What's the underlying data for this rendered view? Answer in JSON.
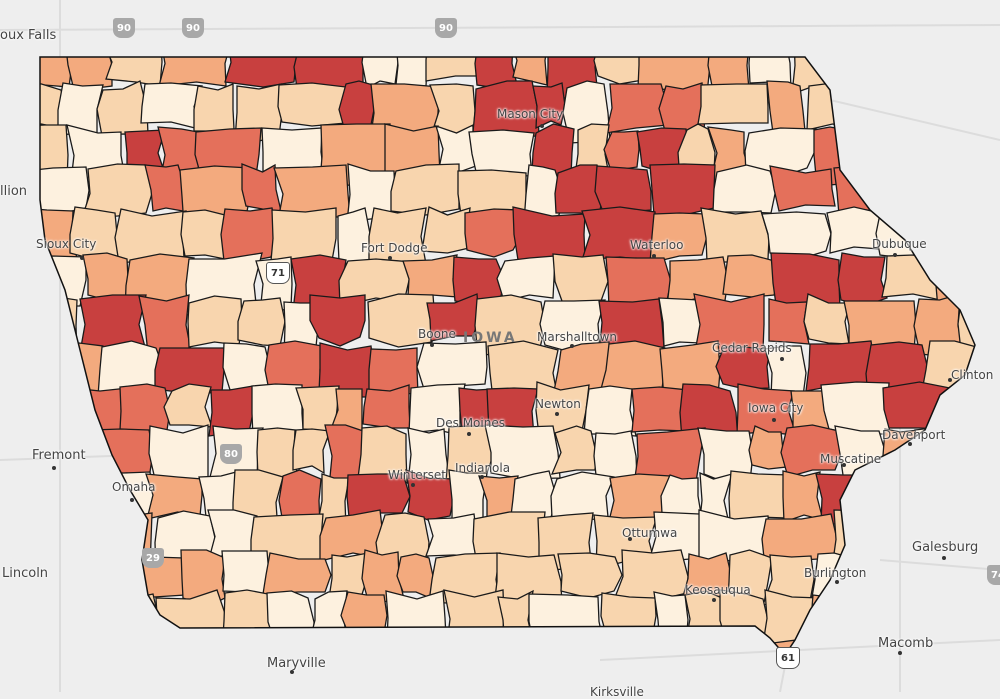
{
  "palette": [
    "#fdf1df",
    "#f8d5ae",
    "#f3aa7e",
    "#e4705b",
    "#c8403f"
  ],
  "background_color": "#eeeeee",
  "region_label": "IOWA",
  "cities": [
    {
      "name": "oux Falls"
    },
    {
      "name": "llion"
    },
    {
      "name": "Sioux City"
    },
    {
      "name": "Mason City"
    },
    {
      "name": "Fort Dodge"
    },
    {
      "name": "Waterloo"
    },
    {
      "name": "Dubuque"
    },
    {
      "name": "Boone"
    },
    {
      "name": "Marshalltown"
    },
    {
      "name": "Cedar Rapids"
    },
    {
      "name": "Clinton"
    },
    {
      "name": "Iowa City"
    },
    {
      "name": "Des Moines"
    },
    {
      "name": "Newton"
    },
    {
      "name": "Davenport"
    },
    {
      "name": "Muscatine"
    },
    {
      "name": "Winterset"
    },
    {
      "name": "Indianola"
    },
    {
      "name": "Fremont"
    },
    {
      "name": "Omaha"
    },
    {
      "name": "Ottumwa"
    },
    {
      "name": "Galesburg"
    },
    {
      "name": "Lincoln"
    },
    {
      "name": "Burlington"
    },
    {
      "name": "Keosauqua"
    },
    {
      "name": "Maryville"
    },
    {
      "name": "Macomb"
    },
    {
      "name": "Kirksville"
    }
  ],
  "highways": [
    {
      "route": "90",
      "type": "interstate"
    },
    {
      "route": "90",
      "type": "interstate"
    },
    {
      "route": "90",
      "type": "interstate"
    },
    {
      "route": "71",
      "type": "us"
    },
    {
      "route": "80",
      "type": "interstate"
    },
    {
      "route": "29",
      "type": "interstate"
    },
    {
      "route": "61",
      "type": "us"
    },
    {
      "route": "74",
      "type": "interstate"
    }
  ]
}
